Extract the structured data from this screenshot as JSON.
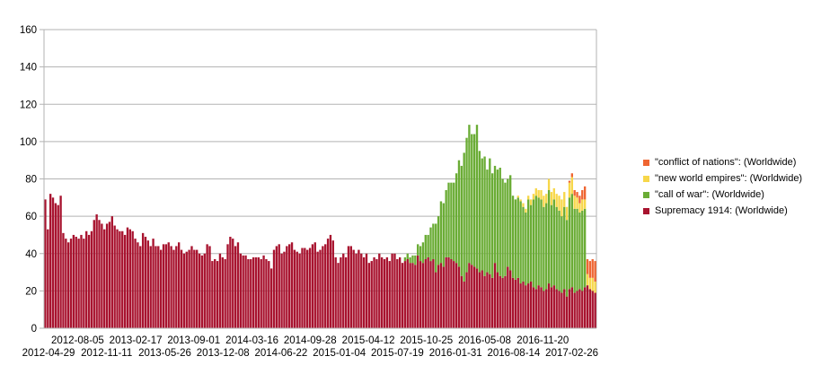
{
  "chart_data": {
    "type": "bar",
    "stacked": true,
    "ylim": [
      0,
      160
    ],
    "yticks": [
      0,
      20,
      40,
      60,
      80,
      100,
      120,
      140,
      160
    ],
    "grid": true,
    "legend_position": "right",
    "xtick_labels_row1": [
      "2012-08-05",
      "2013-02-17",
      "2013-09-01",
      "2014-03-16",
      "2014-09-28",
      "2015-04-12",
      "2015-10-25",
      "2016-05-08",
      "2016-11-20"
    ],
    "xtick_labels_row2": [
      "2012-04-29",
      "2012-11-11",
      "2013-05-26",
      "2013-12-08",
      "2014-06-22",
      "2015-01-04",
      "2015-07-19",
      "2016-01-31",
      "2016-08-14",
      "2017-02-26"
    ],
    "series": [
      {
        "name": "Supremacy 1914: (Worldwide)",
        "color": "#a8132f",
        "values": [
          69,
          53,
          72,
          70,
          67,
          66,
          71,
          51,
          48,
          46,
          48,
          50,
          49,
          48,
          50,
          48,
          52,
          50,
          52,
          58,
          61,
          58,
          56,
          53,
          56,
          57,
          60,
          55,
          53,
          52,
          52,
          50,
          54,
          53,
          52,
          48,
          46,
          44,
          51,
          49,
          47,
          44,
          48,
          44,
          44,
          42,
          45,
          45,
          46,
          44,
          42,
          44,
          46,
          42,
          40,
          41,
          42,
          44,
          42,
          42,
          40,
          39,
          40,
          45,
          44,
          36,
          37,
          36,
          40,
          38,
          37,
          45,
          49,
          48,
          44,
          46,
          40,
          39,
          39,
          37,
          37,
          38,
          38,
          38,
          37,
          39,
          37,
          36,
          32,
          42,
          44,
          45,
          40,
          41,
          44,
          45,
          46,
          42,
          41,
          40,
          43,
          43,
          42,
          43,
          45,
          46,
          41,
          42,
          44,
          45,
          48,
          50,
          47,
          38,
          35,
          38,
          40,
          38,
          44,
          44,
          42,
          40,
          42,
          40,
          38,
          40,
          35,
          36,
          38,
          37,
          40,
          38,
          37,
          38,
          36,
          40,
          40,
          37,
          38,
          35,
          36,
          37,
          35,
          35,
          34,
          39,
          36,
          35,
          37,
          38,
          36,
          37,
          30,
          34,
          35,
          33,
          38,
          38,
          37,
          36,
          35,
          33,
          28,
          25,
          30,
          35,
          34,
          33,
          32,
          30,
          31,
          28,
          30,
          29,
          27,
          35,
          30,
          28,
          27,
          28,
          33,
          31,
          27,
          26,
          27,
          24,
          25,
          23,
          24,
          25,
          22,
          21,
          23,
          22,
          20,
          21,
          24,
          22,
          23,
          21,
          20,
          19,
          21,
          17,
          21,
          22,
          19,
          20,
          21,
          20,
          22,
          23,
          21,
          20,
          19
        ]
      },
      {
        "name": "\"call of war\": (Worldwide)",
        "color": "#6aac35",
        "values": [
          0,
          0,
          0,
          0,
          0,
          0,
          0,
          0,
          0,
          0,
          0,
          0,
          0,
          0,
          0,
          0,
          0,
          0,
          0,
          0,
          0,
          0,
          0,
          0,
          0,
          0,
          0,
          0,
          0,
          0,
          0,
          0,
          0,
          0,
          0,
          0,
          0,
          0,
          0,
          0,
          0,
          0,
          0,
          0,
          0,
          0,
          0,
          0,
          0,
          0,
          0,
          0,
          0,
          0,
          0,
          0,
          0,
          0,
          0,
          0,
          0,
          0,
          0,
          0,
          0,
          0,
          0,
          0,
          0,
          0,
          0,
          0,
          0,
          0,
          0,
          0,
          0,
          0,
          0,
          0,
          0,
          0,
          0,
          0,
          0,
          0,
          0,
          0,
          0,
          0,
          0,
          0,
          0,
          0,
          0,
          0,
          0,
          0,
          0,
          0,
          0,
          0,
          0,
          0,
          0,
          0,
          0,
          0,
          0,
          0,
          0,
          0,
          0,
          0,
          0,
          0,
          0,
          0,
          0,
          0,
          0,
          0,
          0,
          0,
          0,
          0,
          0,
          0,
          0,
          0,
          0,
          0,
          0,
          0,
          0,
          0,
          0,
          0,
          0,
          0,
          2,
          3,
          3,
          4,
          5,
          6,
          8,
          11,
          13,
          12,
          18,
          19,
          26,
          26,
          33,
          34,
          36,
          40,
          41,
          42,
          48,
          57,
          59,
          69,
          72,
          74,
          70,
          71,
          77,
          65,
          60,
          64,
          55,
          62,
          56,
          52,
          55,
          58,
          53,
          50,
          47,
          51,
          44,
          43,
          43,
          44,
          40,
          39,
          45,
          41,
          47,
          50,
          47,
          47,
          45,
          46,
          50,
          44,
          46,
          44,
          43,
          41,
          44,
          41,
          49,
          50,
          45,
          44,
          41,
          43,
          42
        ]
      },
      {
        "name": "\"new world empires\": (Worldwide)",
        "color": "#f7d74a",
        "values": [
          0,
          0,
          0,
          0,
          0,
          0,
          0,
          0,
          0,
          0,
          0,
          0,
          0,
          0,
          0,
          0,
          0,
          0,
          0,
          0,
          0,
          0,
          0,
          0,
          0,
          0,
          0,
          0,
          0,
          0,
          0,
          0,
          0,
          0,
          0,
          0,
          0,
          0,
          0,
          0,
          0,
          0,
          0,
          0,
          0,
          0,
          0,
          0,
          0,
          0,
          0,
          0,
          0,
          0,
          0,
          0,
          0,
          0,
          0,
          0,
          0,
          0,
          0,
          0,
          0,
          0,
          0,
          0,
          0,
          0,
          0,
          0,
          0,
          0,
          0,
          0,
          0,
          0,
          0,
          0,
          0,
          0,
          0,
          0,
          0,
          0,
          0,
          0,
          0,
          0,
          0,
          0,
          0,
          0,
          0,
          0,
          0,
          0,
          0,
          0,
          0,
          0,
          0,
          0,
          0,
          0,
          0,
          0,
          0,
          0,
          0,
          0,
          0,
          0,
          0,
          0,
          0,
          0,
          0,
          0,
          0,
          0,
          0,
          0,
          0,
          0,
          0,
          0,
          0,
          0,
          0,
          0,
          0,
          0,
          0,
          0,
          0,
          0,
          0,
          0,
          0,
          0,
          0,
          0,
          0,
          0,
          0,
          0,
          0,
          0,
          0,
          0,
          0,
          0,
          0,
          0,
          0,
          0,
          0,
          0,
          0,
          0,
          0,
          0,
          0,
          0,
          0,
          0,
          0,
          0,
          0,
          0,
          0,
          0,
          0,
          0,
          0,
          0,
          0,
          0,
          0,
          0,
          0,
          0,
          1,
          1,
          2,
          2,
          2,
          3,
          3,
          4,
          4,
          5,
          6,
          5,
          6,
          7,
          6,
          7,
          8,
          9,
          8,
          7,
          8,
          9,
          7,
          6,
          5,
          6,
          5,
          6,
          6,
          7,
          6
        ]
      },
      {
        "name": "\"conflict of nations\": (Worldwide)",
        "color": "#ef6532",
        "values": [
          0,
          0,
          0,
          0,
          0,
          0,
          0,
          0,
          0,
          0,
          0,
          0,
          0,
          0,
          0,
          0,
          0,
          0,
          0,
          0,
          0,
          0,
          0,
          0,
          0,
          0,
          0,
          0,
          0,
          0,
          0,
          0,
          0,
          0,
          0,
          0,
          0,
          0,
          0,
          0,
          0,
          0,
          0,
          0,
          0,
          0,
          0,
          0,
          0,
          0,
          0,
          0,
          0,
          0,
          0,
          0,
          0,
          0,
          0,
          0,
          0,
          0,
          0,
          0,
          0,
          0,
          0,
          0,
          0,
          0,
          0,
          0,
          0,
          0,
          0,
          0,
          0,
          0,
          0,
          0,
          0,
          0,
          0,
          0,
          0,
          0,
          0,
          0,
          0,
          0,
          0,
          0,
          0,
          0,
          0,
          0,
          0,
          0,
          0,
          0,
          0,
          0,
          0,
          0,
          0,
          0,
          0,
          0,
          0,
          0,
          0,
          0,
          0,
          0,
          0,
          0,
          0,
          0,
          0,
          0,
          0,
          0,
          0,
          0,
          0,
          0,
          0,
          0,
          0,
          0,
          0,
          0,
          0,
          0,
          0,
          0,
          0,
          0,
          0,
          0,
          0,
          0,
          0,
          0,
          0,
          0,
          0,
          0,
          0,
          0,
          0,
          0,
          0,
          0,
          0,
          0,
          0,
          0,
          0,
          0,
          0,
          0,
          0,
          0,
          0,
          0,
          0,
          0,
          0,
          0,
          0,
          0,
          0,
          0,
          0,
          0,
          0,
          0,
          0,
          0,
          0,
          0,
          0,
          0,
          0,
          0,
          0,
          0,
          0,
          0,
          0,
          0,
          0,
          0,
          0,
          0,
          0,
          0,
          0,
          0,
          0,
          0,
          0,
          0,
          1,
          2,
          3,
          3,
          4,
          5,
          7,
          8,
          9,
          10,
          11
        ]
      }
    ],
    "legend": [
      {
        "label": "\"conflict of nations\": (Worldwide)",
        "color": "#ef6532"
      },
      {
        "label": "\"new world empires\": (Worldwide)",
        "color": "#f7d74a"
      },
      {
        "label": "\"call of war\": (Worldwide)",
        "color": "#6aac35"
      },
      {
        "label": "Supremacy 1914: (Worldwide)",
        "color": "#a8132f"
      }
    ]
  }
}
